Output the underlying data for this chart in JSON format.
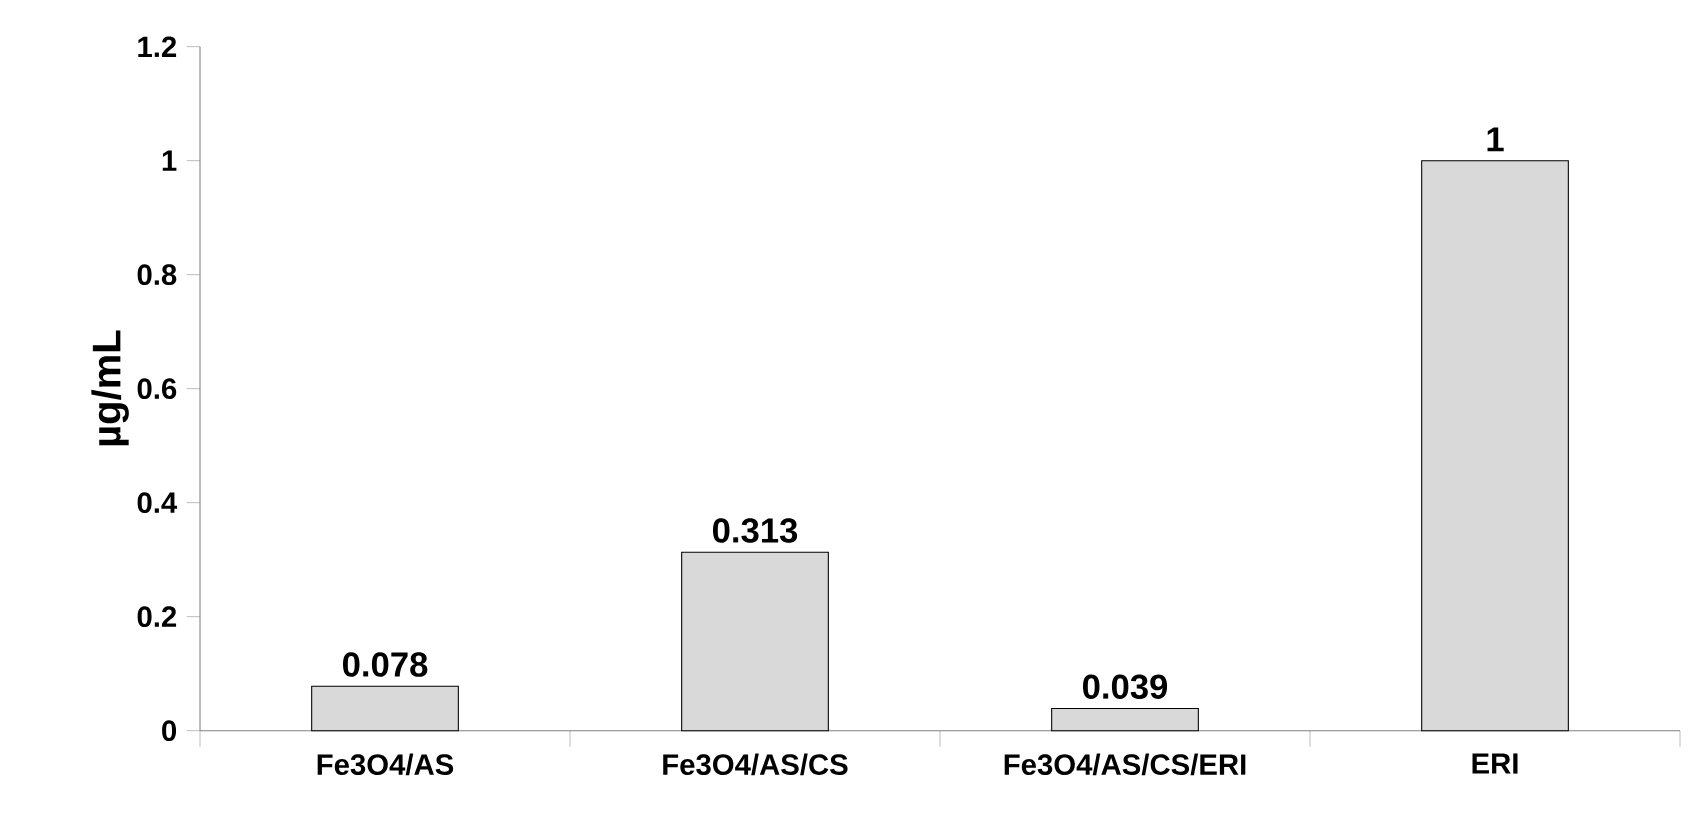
{
  "chart_data": {
    "type": "bar",
    "ylabel": "µg/mL",
    "categories": [
      "Fe3O4/AS",
      "Fe3O4/AS/CS",
      "Fe3O4/AS/CS/ERI",
      "ERI"
    ],
    "values": [
      0.078,
      0.313,
      0.039,
      1
    ],
    "value_labels": [
      "0.078",
      "0.313",
      "0.039",
      "1"
    ],
    "color": "#d9d9d9",
    "ylim": [
      0,
      1.2
    ],
    "yticks": [
      0,
      0.2,
      0.4,
      0.6,
      0.8,
      1,
      1.2
    ],
    "grid": false
  }
}
